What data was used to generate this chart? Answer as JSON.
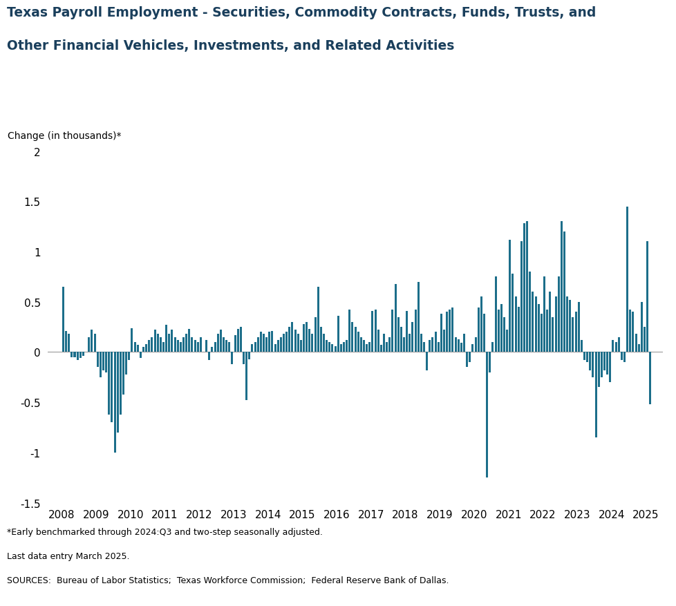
{
  "title_line1": "Texas Payroll Employment - Securities, Commodity Contracts, Funds, Trusts, and",
  "title_line2": "Other Financial Vehicles, Investments, and Related Activities",
  "ylabel": "Change (in thousands)*",
  "footnote1": "*Early benchmarked through 2024:Q3 and two-step seasonally adjusted.",
  "footnote2": "Last data entry March 2025.",
  "footnote3": "SOURCES:  Bureau of Labor Statistics;  Texas Workforce Commission;  Federal Reserve Bank of Dallas.",
  "bar_color": "#1c6e8a",
  "ylim": [
    -1.5,
    2.0
  ],
  "yticks": [
    -1.5,
    -1.0,
    -0.5,
    0.0,
    0.5,
    1.0,
    1.5,
    2.0
  ],
  "xlim": [
    2007.58,
    2025.5
  ],
  "x_tick_years": [
    2008,
    2009,
    2010,
    2011,
    2012,
    2013,
    2014,
    2015,
    2016,
    2017,
    2018,
    2019,
    2020,
    2021,
    2022,
    2023,
    2024,
    2025
  ],
  "start_year": 2008,
  "start_month": 1,
  "values": [
    0.65,
    0.21,
    0.18,
    -0.05,
    -0.05,
    -0.08,
    -0.06,
    -0.04,
    0.0,
    0.15,
    0.22,
    0.18,
    -0.15,
    -0.25,
    -0.18,
    -0.2,
    -0.62,
    -0.7,
    -1.0,
    -0.8,
    -0.62,
    -0.42,
    -0.22,
    -0.08,
    0.24,
    0.1,
    0.07,
    -0.06,
    0.05,
    0.08,
    0.12,
    0.15,
    0.22,
    0.18,
    0.15,
    0.1,
    0.27,
    0.18,
    0.22,
    0.15,
    0.12,
    0.1,
    0.15,
    0.18,
    0.23,
    0.15,
    0.12,
    0.1,
    0.15,
    0.0,
    0.12,
    -0.08,
    0.05,
    0.1,
    0.18,
    0.22,
    0.15,
    0.12,
    0.1,
    -0.12,
    0.17,
    0.23,
    0.25,
    -0.12,
    -0.48,
    -0.07,
    0.08,
    0.1,
    0.15,
    0.2,
    0.18,
    0.15,
    0.2,
    0.21,
    0.08,
    0.12,
    0.15,
    0.18,
    0.2,
    0.25,
    0.3,
    0.22,
    0.18,
    0.12,
    0.28,
    0.3,
    0.23,
    0.18,
    0.35,
    0.65,
    0.25,
    0.18,
    0.12,
    0.1,
    0.08,
    0.06,
    0.36,
    0.08,
    0.1,
    0.12,
    0.42,
    0.3,
    0.25,
    0.2,
    0.15,
    0.12,
    0.08,
    0.1,
    0.41,
    0.42,
    0.22,
    0.07,
    0.18,
    0.1,
    0.15,
    0.42,
    0.68,
    0.35,
    0.25,
    0.15,
    0.41,
    0.18,
    0.3,
    0.42,
    0.7,
    0.18,
    0.1,
    -0.18,
    0.12,
    0.15,
    0.2,
    0.1,
    0.38,
    0.22,
    0.4,
    0.42,
    0.44,
    0.15,
    0.13,
    0.09,
    0.18,
    -0.15,
    -0.1,
    0.08,
    0.15,
    0.44,
    0.55,
    0.38,
    -1.25,
    -0.2,
    0.1,
    0.75,
    0.42,
    0.48,
    0.35,
    0.22,
    1.12,
    0.78,
    0.55,
    0.45,
    1.1,
    1.28,
    1.3,
    0.8,
    0.6,
    0.55,
    0.48,
    0.38,
    0.75,
    0.42,
    0.6,
    0.35,
    0.55,
    0.75,
    1.3,
    1.2,
    0.55,
    0.52,
    0.35,
    0.4,
    0.5,
    0.12,
    -0.08,
    -0.1,
    -0.18,
    -0.25,
    -0.85,
    -0.35,
    -0.25,
    -0.18,
    -0.22,
    -0.3,
    0.12,
    0.1,
    0.15,
    -0.08,
    -0.1,
    1.45,
    0.42,
    0.4,
    0.18,
    0.08,
    0.5,
    0.25,
    1.1,
    -0.52,
    0.0
  ]
}
